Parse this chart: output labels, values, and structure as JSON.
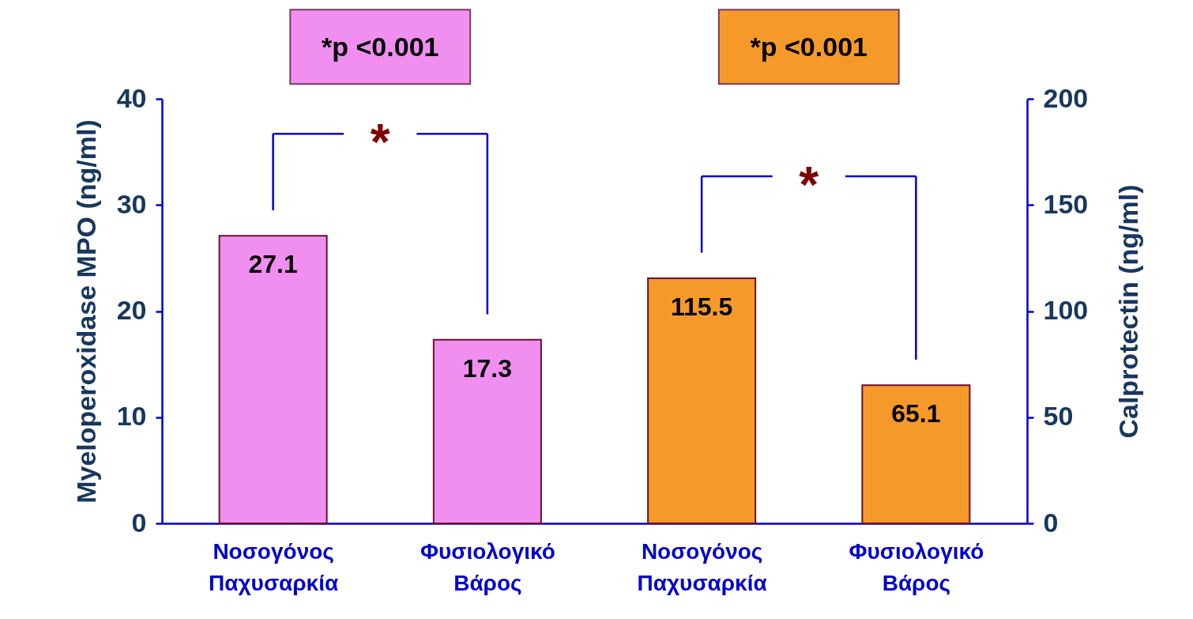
{
  "chart_data": {
    "type": "bar",
    "ylabel": "Myeloperoxidase MPO (ng/ml)",
    "y2label": "Calprotectin (ng/ml)",
    "categories": [
      "Νοσογόνος\nΠαχυσαρκία",
      "Φυσιολογικό\nΒάρος",
      "Νοσογόνος\nΠαχυσαρκία",
      "Φυσιολογικό\nΒάρος"
    ],
    "series": [
      {
        "color": "#f08ff0",
        "axis": "y",
        "values": [
          27.1,
          17.3,
          null,
          null
        ]
      },
      {
        "color": "#f59a2a",
        "axis": "y2",
        "values": [
          null,
          null,
          115.5,
          65.1
        ]
      }
    ],
    "ylim": [
      0,
      40
    ],
    "yticks": [
      0,
      10,
      20,
      30,
      40
    ],
    "y2lim": [
      0,
      200
    ],
    "y2ticks": [
      0,
      50,
      100,
      150,
      200
    ],
    "data_labels": true,
    "annotations": [
      "*p <0.001",
      "*p <0.001",
      "*",
      "*"
    ]
  }
}
